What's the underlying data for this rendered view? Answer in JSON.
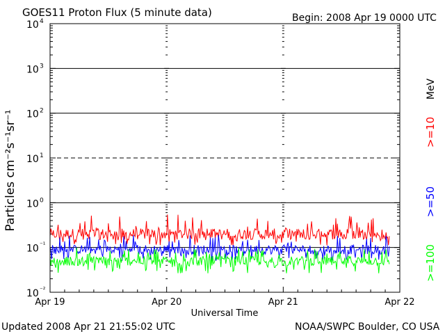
{
  "header": {
    "title": "GOES11 Proton Flux (5 minute data)",
    "begin": "Begin: 2008 Apr 19 0000 UTC"
  },
  "footer": {
    "updated": "Updated 2008 Apr 21 21:55:02 UTC",
    "source": "NOAA/SWPC Boulder, CO USA"
  },
  "chart_data": {
    "type": "line",
    "title": "GOES11 Proton Flux (5 minute data)",
    "xlabel": "Universal Time",
    "ylabel": "Particles cm⁻²s⁻¹sr⁻¹",
    "y_scale": "log",
    "ylim": [
      0.01,
      10000
    ],
    "xlim": [
      "2008-04-19T00:00",
      "2008-04-22T00:00"
    ],
    "x_ticks": [
      "Apr 19",
      "Apr 20",
      "Apr 21",
      "Apr 22"
    ],
    "y_ticks": [
      {
        "base": "10",
        "exp": "⁻²"
      },
      {
        "base": "10",
        "exp": "⁻¹"
      },
      {
        "base": "10",
        "exp": "0"
      },
      {
        "base": "10",
        "exp": "1"
      },
      {
        "base": "10",
        "exp": "2"
      },
      {
        "base": "10",
        "exp": "3"
      },
      {
        "base": "10",
        "exp": "4"
      }
    ],
    "reference_lines": [
      {
        "value": 10,
        "style": "dashed"
      },
      {
        "value": 1,
        "style": "solid"
      },
      {
        "value": 100,
        "style": "solid"
      },
      {
        "value": 1000,
        "style": "solid"
      },
      {
        "value": 0.1,
        "style": "solid"
      }
    ],
    "data_end": "2008-04-21T21:55",
    "series": [
      {
        "name": ">=10",
        "color": "#ff0000",
        "typical": 0.2,
        "range": [
          0.11,
          0.55
        ]
      },
      {
        "name": ">=50",
        "color": "#0000ff",
        "typical": 0.09,
        "range": [
          0.05,
          0.2
        ]
      },
      {
        "name": ">=100",
        "color": "#00ff00",
        "typical": 0.05,
        "range": [
          0.025,
          0.1
        ]
      }
    ],
    "legend_unit": "MeV"
  }
}
